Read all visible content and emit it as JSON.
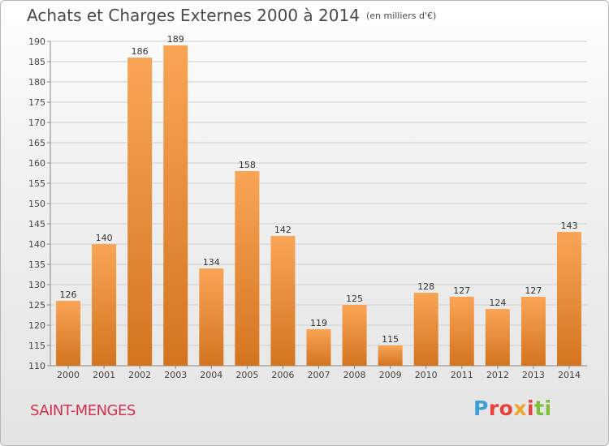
{
  "header": {
    "title": "Achats et Charges Externes 2000 à 2014",
    "subtitle": "(en milliers d'€)"
  },
  "commune": "SAINT-MENGES",
  "logo": {
    "text": "Proxiti",
    "parts": [
      "P",
      "ro",
      "x",
      "i",
      "ti"
    ]
  },
  "colors": {
    "bar_light": "#f9a556",
    "bar_dark": "#d4741f",
    "grid": "#cfcfcf"
  },
  "chart_data": {
    "type": "bar",
    "title": "Achats et Charges Externes 2000 à 2014",
    "subtitle": "(en milliers d'€)",
    "categories": [
      "2000",
      "2001",
      "2002",
      "2003",
      "2004",
      "2005",
      "2006",
      "2007",
      "2008",
      "2009",
      "2010",
      "2011",
      "2012",
      "2013",
      "2014"
    ],
    "values": [
      126,
      140,
      186,
      189,
      134,
      158,
      142,
      119,
      125,
      115,
      128,
      127,
      124,
      127,
      143
    ],
    "ylim": [
      110,
      190
    ],
    "ytick_step": 5,
    "grid": true,
    "data_labels": true
  }
}
